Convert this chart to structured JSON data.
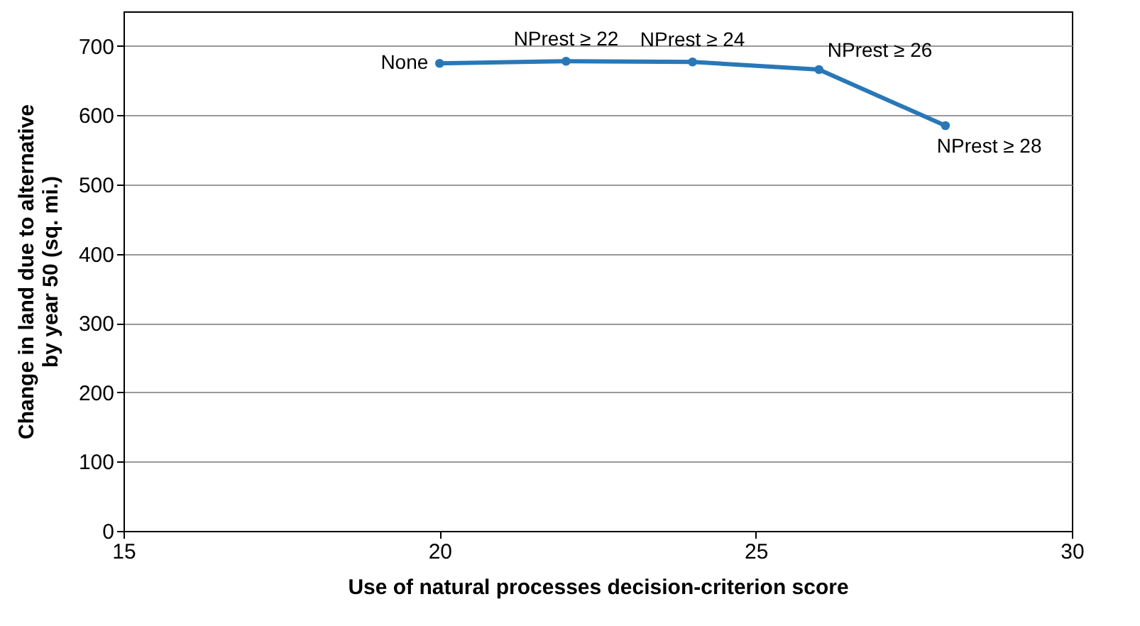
{
  "chart_data": {
    "type": "line",
    "xlabel": "Use of natural processes decision-criterion score",
    "ylabel": "Change in land due to alternative\nby year 50 (sq. mi.)",
    "x": [
      20,
      22,
      24,
      26,
      28
    ],
    "series": [
      {
        "color": "#2878b8",
        "values": [
          675,
          678,
          677,
          666,
          585
        ]
      }
    ],
    "xlim": [
      15,
      30
    ],
    "xticks": [
      15,
      20,
      25,
      30
    ],
    "ylim": [
      0,
      750
    ],
    "yticks": [
      0,
      100,
      200,
      300,
      400,
      500,
      600,
      700
    ],
    "grid": "y",
    "marker": "circle",
    "line_style": "solid",
    "legend": false,
    "annotations": [
      {
        "text": "None",
        "x": 20,
        "y": 675
      },
      {
        "text": "NPrest ≥ 22",
        "x": 22,
        "y": 678
      },
      {
        "text": "NPrest ≥ 24",
        "x": 24,
        "y": 677
      },
      {
        "text": "NPrest ≥ 26",
        "x": 26,
        "y": 666
      },
      {
        "text": "NPrest ≥ 28",
        "x": 28,
        "y": 585
      }
    ]
  }
}
